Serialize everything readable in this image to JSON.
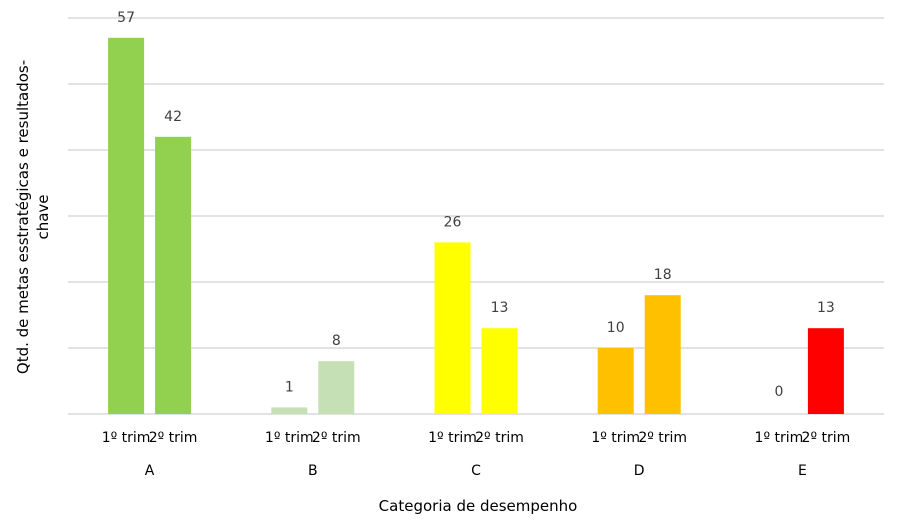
{
  "chart_data": {
    "type": "bar",
    "title": "",
    "xlabel": "Categoria de desempenho",
    "ylabel_lines": [
      "Qtd. de metas esstratégicas  e resultados-",
      "chave"
    ],
    "ylabel": "Qtd. de metas esstratégicas  e resultados-chave",
    "ylim": [
      0,
      60
    ],
    "ytick_step": 10,
    "y_axis_labels_shown": false,
    "grid": true,
    "legend": "none",
    "data_labels": true,
    "groups": [
      "A",
      "B",
      "C",
      "D",
      "E"
    ],
    "subcategories": [
      "1º trim",
      "2º trim"
    ],
    "series": [
      {
        "name": "1º trim",
        "values": [
          57,
          1,
          26,
          10,
          0
        ]
      },
      {
        "name": "2º trim",
        "values": [
          42,
          8,
          13,
          18,
          13
        ]
      }
    ],
    "group_colors": {
      "A": "#92d050",
      "B": "#c5e0b4",
      "C": "#ffff00",
      "D": "#ffc000",
      "E": "#ff0000"
    }
  },
  "axis": {
    "x_title": "Categoria de desempenho",
    "y_title_line1": "Qtd. de metas esstratégicas  e resultados-",
    "y_title_line2": "chave"
  }
}
